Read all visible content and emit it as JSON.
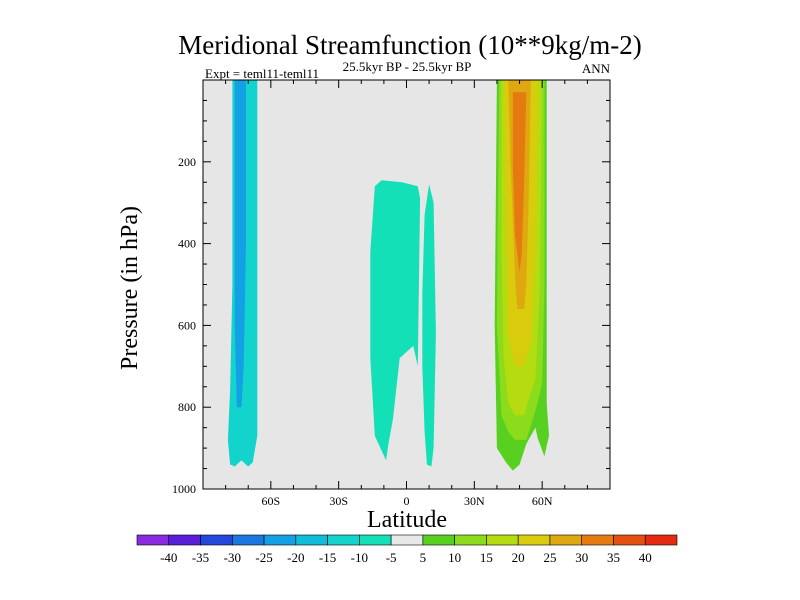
{
  "chart_data": {
    "type": "contour",
    "title": "Meridional Streamfunction (10**9kg/m-2)",
    "left_label": "Expt = teml11-teml11",
    "center_label": "25.5kyr BP - 25.5kyr BP",
    "right_label": "ANN",
    "xlabel": "Latitude",
    "ylabel": "Pressure (in hPa)",
    "xlim": [
      -90,
      90
    ],
    "ylim": [
      1000,
      0
    ],
    "x_ticks": [
      {
        "value": -60,
        "label": "60S"
      },
      {
        "value": -30,
        "label": "30S"
      },
      {
        "value": 0,
        "label": "0"
      },
      {
        "value": 30,
        "label": "30N"
      },
      {
        "value": 60,
        "label": "60N"
      }
    ],
    "y_ticks": [
      {
        "value": 200,
        "label": "200"
      },
      {
        "value": 400,
        "label": "400"
      },
      {
        "value": 600,
        "label": "600"
      },
      {
        "value": 800,
        "label": "800"
      },
      {
        "value": 1000,
        "label": "1000"
      }
    ],
    "colorbar": {
      "levels": [
        "-40",
        "-35",
        "-30",
        "-25",
        "-20",
        "-15",
        "-10",
        "-5",
        "5",
        "10",
        "15",
        "20",
        "25",
        "30",
        "35",
        "40"
      ],
      "colors": [
        "#8a2be2",
        "#5a20d8",
        "#2448dc",
        "#1a78e0",
        "#14a0e4",
        "#10bcd8",
        "#12d4cc",
        "#14e0b8",
        "#e8e8e8",
        "#58d020",
        "#8cdc1c",
        "#b4dc10",
        "#d8cc0c",
        "#e0a810",
        "#e47a10",
        "#e45010",
        "#e42a10"
      ]
    },
    "regions": [
      {
        "name": "southern-hemisphere-cell",
        "value_range": "-15 to -10",
        "color": "#12d4cc",
        "polygon": [
          [
            -77,
            0
          ],
          [
            -66,
            0
          ],
          [
            -66,
            240
          ],
          [
            -66,
            870
          ],
          [
            -68,
            935
          ],
          [
            -70,
            945
          ],
          [
            -73,
            930
          ],
          [
            -76,
            945
          ],
          [
            -78,
            940
          ],
          [
            -79,
            880
          ],
          [
            -78,
            760
          ],
          [
            -77,
            500
          ]
        ]
      },
      {
        "name": "southern-hemisphere-cell-core",
        "value_range": "-20 to -15",
        "color": "#14a0e4",
        "polygon": [
          [
            -76,
            0
          ],
          [
            -71,
            0
          ],
          [
            -71,
            400
          ],
          [
            -72,
            700
          ],
          [
            -73,
            800
          ],
          [
            -75,
            800
          ],
          [
            -76,
            600
          ]
        ]
      },
      {
        "name": "tropical-cell-south",
        "value_range": "-10 to -5",
        "color": "#14e0b8",
        "polygon": [
          [
            -14,
            260
          ],
          [
            -11,
            245
          ],
          [
            -2,
            250
          ],
          [
            5,
            260
          ],
          [
            6,
            290
          ],
          [
            5,
            700
          ],
          [
            3,
            650
          ],
          [
            -3,
            680
          ],
          [
            -6,
            830
          ],
          [
            -8,
            890
          ],
          [
            -9,
            930
          ],
          [
            -14,
            870
          ],
          [
            -16,
            680
          ],
          [
            -16,
            420
          ]
        ]
      },
      {
        "name": "tropical-cell-north",
        "value_range": "-10 to -5",
        "color": "#14e0b8",
        "polygon": [
          [
            8,
            330
          ],
          [
            10,
            255
          ],
          [
            12,
            300
          ],
          [
            13,
            620
          ],
          [
            12,
            900
          ],
          [
            11,
            945
          ],
          [
            9,
            940
          ],
          [
            8,
            860
          ],
          [
            7,
            700
          ],
          [
            7,
            520
          ]
        ]
      },
      {
        "name": "northern-hemisphere-cell",
        "value_range": "5 to 10",
        "color": "#58d020",
        "polygon": [
          [
            40,
            0
          ],
          [
            62,
            0
          ],
          [
            62,
            790
          ],
          [
            63,
            870
          ],
          [
            61,
            920
          ],
          [
            58,
            875
          ],
          [
            57,
            850
          ],
          [
            53,
            890
          ],
          [
            50,
            940
          ],
          [
            47,
            955
          ],
          [
            44,
            935
          ],
          [
            40,
            900
          ],
          [
            39,
            600
          ]
        ]
      },
      {
        "name": "northern-hemisphere-cell-ring1",
        "value_range": "10 to 15",
        "color": "#8cdc1c",
        "polygon": [
          [
            41,
            0
          ],
          [
            61,
            0
          ],
          [
            61,
            500
          ],
          [
            60,
            740
          ],
          [
            58,
            790
          ],
          [
            55,
            845
          ],
          [
            53,
            880
          ],
          [
            48,
            880
          ],
          [
            45,
            860
          ],
          [
            42,
            820
          ],
          [
            40,
            600
          ]
        ]
      },
      {
        "name": "northern-hemisphere-cell-ring2",
        "value_range": "15 to 20",
        "color": "#b4dc10",
        "polygon": [
          [
            42,
            0
          ],
          [
            60,
            0
          ],
          [
            59,
            500
          ],
          [
            57,
            730
          ],
          [
            54,
            780
          ],
          [
            52,
            820
          ],
          [
            48,
            820
          ],
          [
            45,
            790
          ],
          [
            43,
            680
          ],
          [
            42,
            400
          ]
        ]
      },
      {
        "name": "northern-hemisphere-cell-ring3",
        "value_range": "20 to 25",
        "color": "#d8cc0c",
        "polygon": [
          [
            43,
            0
          ],
          [
            58,
            0
          ],
          [
            57,
            400
          ],
          [
            55,
            640
          ],
          [
            52,
            700
          ],
          [
            48,
            700
          ],
          [
            45,
            620
          ],
          [
            44,
            300
          ]
        ]
      },
      {
        "name": "northern-hemisphere-cell-ring4",
        "value_range": "25 to 30",
        "color": "#e0a810",
        "polygon": [
          [
            45,
            0
          ],
          [
            55,
            0
          ],
          [
            54,
            300
          ],
          [
            53,
            500
          ],
          [
            52,
            560
          ],
          [
            49,
            560
          ],
          [
            48,
            480
          ],
          [
            46,
            200
          ]
        ]
      },
      {
        "name": "northern-hemisphere-cell-max",
        "value_range": "30 to 35",
        "color": "#e47a10",
        "polygon": [
          [
            47,
            30
          ],
          [
            53,
            30
          ],
          [
            52,
            250
          ],
          [
            51,
            420
          ],
          [
            50,
            470
          ],
          [
            48,
            380
          ],
          [
            47,
            200
          ]
        ]
      }
    ]
  }
}
